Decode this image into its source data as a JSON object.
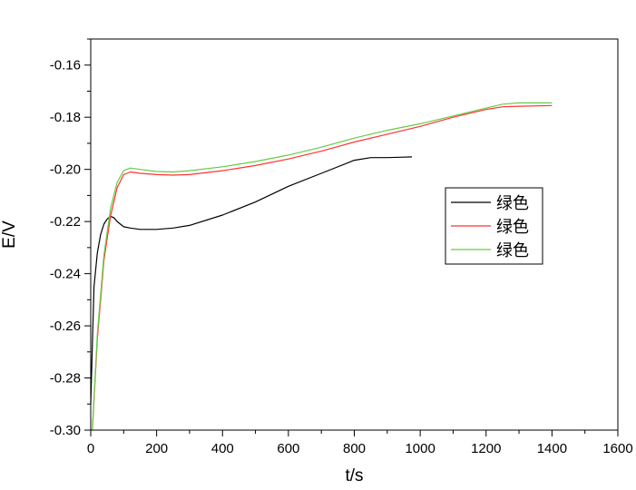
{
  "chart_data": {
    "type": "line",
    "title": "",
    "xlabel": "t/s",
    "ylabel": "E/V",
    "xlim": [
      0,
      1600
    ],
    "ylim": [
      -0.3,
      -0.15
    ],
    "xticks": [
      0,
      200,
      400,
      600,
      800,
      1000,
      1200,
      1400,
      1600
    ],
    "xtick_labels": [
      "0",
      "200",
      "400",
      "600",
      "800",
      "1000",
      "1200",
      "1400",
      "1600"
    ],
    "yticks": [
      -0.3,
      -0.28,
      -0.26,
      -0.24,
      -0.22,
      -0.2,
      -0.18,
      -0.16
    ],
    "ytick_labels": [
      "-0.30",
      "-0.28",
      "-0.26",
      "-0.24",
      "-0.22",
      "-0.20",
      "-0.18",
      "-0.16"
    ],
    "grid": false,
    "legend_position": "center-right",
    "series": [
      {
        "name": "绿色",
        "color": "#000000",
        "x": [
          0,
          10,
          20,
          30,
          40,
          50,
          60,
          70,
          80,
          100,
          120,
          150,
          200,
          250,
          300,
          400,
          500,
          600,
          700,
          800,
          850,
          900,
          950,
          975
        ],
        "y": [
          -0.29,
          -0.245,
          -0.232,
          -0.225,
          -0.221,
          -0.219,
          -0.218,
          -0.2185,
          -0.22,
          -0.222,
          -0.2225,
          -0.223,
          -0.223,
          -0.2225,
          -0.2215,
          -0.2175,
          -0.2125,
          -0.2065,
          -0.2015,
          -0.1965,
          -0.1955,
          -0.1955,
          -0.1953,
          -0.1952
        ]
      },
      {
        "name": "绿色",
        "color": "#ff3333",
        "x": [
          5,
          20,
          40,
          60,
          80,
          100,
          120,
          150,
          200,
          250,
          300,
          400,
          500,
          600,
          700,
          800,
          900,
          1000,
          1100,
          1200,
          1250,
          1300,
          1400
        ],
        "y": [
          -0.3,
          -0.265,
          -0.235,
          -0.218,
          -0.207,
          -0.202,
          -0.201,
          -0.2015,
          -0.202,
          -0.2022,
          -0.202,
          -0.2005,
          -0.1985,
          -0.196,
          -0.193,
          -0.1895,
          -0.1865,
          -0.1835,
          -0.18,
          -0.177,
          -0.176,
          -0.1758,
          -0.1755
        ]
      },
      {
        "name": "绿色",
        "color": "#66cc44",
        "x": [
          5,
          20,
          40,
          60,
          80,
          100,
          120,
          150,
          200,
          250,
          300,
          400,
          500,
          600,
          700,
          800,
          900,
          1000,
          1100,
          1200,
          1250,
          1300,
          1400
        ],
        "y": [
          -0.3,
          -0.263,
          -0.233,
          -0.215,
          -0.205,
          -0.2005,
          -0.1995,
          -0.2,
          -0.2008,
          -0.201,
          -0.2005,
          -0.199,
          -0.197,
          -0.1945,
          -0.1915,
          -0.188,
          -0.185,
          -0.1825,
          -0.1795,
          -0.1765,
          -0.175,
          -0.1745,
          -0.1745
        ]
      }
    ]
  }
}
